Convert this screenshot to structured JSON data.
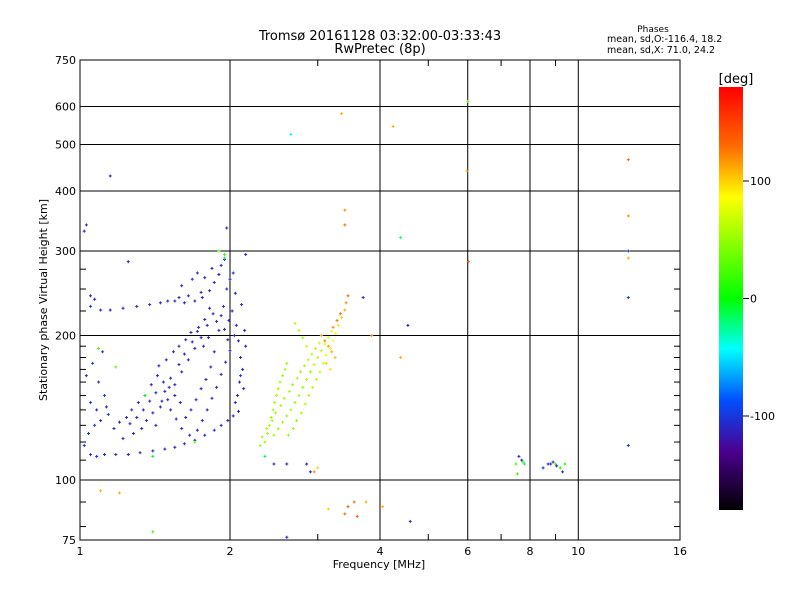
{
  "chart_data": {
    "type": "scatter",
    "title": "Tromsø 20161128 03:32:00-03:33:43",
    "subtitle": "RwPretec (8p)",
    "xlabel": "Frequency [MHz]",
    "ylabel": "Stationary phase Virtual Height [km]",
    "x_scale": "log",
    "y_scale": "log",
    "xlim": [
      1,
      16
    ],
    "ylim": [
      75,
      750
    ],
    "x_ticks": [
      1,
      2,
      4,
      6,
      8,
      10,
      16
    ],
    "x_minor_ticks": [
      3,
      5,
      7,
      9
    ],
    "y_ticks": [
      75,
      100,
      200,
      300,
      400,
      500,
      600,
      750
    ],
    "y_minor_ticks": [
      80,
      90,
      110,
      120,
      130,
      140,
      150,
      160,
      170,
      180,
      190,
      225,
      250,
      275
    ],
    "grid": true,
    "phases": {
      "heading": "Phases",
      "line1": "mean, sd,O:-116.4, 18.2",
      "line2": "mean, sd,X:  71.0, 24.2"
    },
    "colorbar": {
      "label": "[deg]",
      "ticks": [
        "100",
        "0",
        "-100"
      ],
      "tick_values": [
        100,
        0,
        -100
      ],
      "range": [
        -180,
        180
      ]
    },
    "points": [
      [
        1.03,
        340,
        -110
      ],
      [
        1.15,
        430,
        -110
      ],
      [
        1.25,
        285,
        -110
      ],
      [
        1.9,
        300,
        30
      ],
      [
        1.97,
        335,
        -110
      ],
      [
        2.15,
        295,
        -110
      ],
      [
        2.65,
        525,
        -40
      ],
      [
        3.35,
        580,
        110
      ],
      [
        4.25,
        545,
        110
      ],
      [
        4.4,
        320,
        -20
      ],
      [
        6.0,
        615,
        40
      ],
      [
        5.98,
        440,
        110
      ],
      [
        6.02,
        285,
        130
      ],
      [
        12.6,
        465,
        130
      ],
      [
        12.6,
        355,
        120
      ],
      [
        12.6,
        300,
        -100
      ],
      [
        12.6,
        290,
        110
      ],
      [
        12.6,
        240,
        -100
      ],
      [
        12.6,
        118,
        -100
      ],
      [
        3.4,
        365,
        120
      ],
      [
        3.4,
        340,
        130
      ],
      [
        3.7,
        240,
        -100
      ],
      [
        4.55,
        210,
        -120
      ],
      [
        3.85,
        200,
        120
      ],
      [
        4.4,
        180,
        110
      ],
      [
        1.05,
        242,
        -110
      ],
      [
        1.07,
        238,
        -110
      ],
      [
        1.05,
        230,
        -100
      ],
      [
        1.1,
        226,
        -110
      ],
      [
        1.15,
        226,
        -110
      ],
      [
        1.22,
        228,
        -110
      ],
      [
        1.3,
        230,
        -110
      ],
      [
        1.38,
        232,
        -110
      ],
      [
        1.45,
        234,
        -110
      ],
      [
        1.5,
        236,
        -110
      ],
      [
        1.55,
        236,
        -110
      ],
      [
        1.62,
        234,
        -110
      ],
      [
        1.7,
        236,
        -110
      ],
      [
        1.76,
        240,
        -110
      ],
      [
        1.82,
        248,
        -110
      ],
      [
        1.86,
        258,
        -110
      ],
      [
        1.9,
        268,
        -110
      ],
      [
        1.92,
        280,
        -110
      ],
      [
        1.95,
        288,
        -110
      ],
      [
        1.6,
        254,
        -110
      ],
      [
        1.68,
        262,
        -110
      ],
      [
        1.72,
        270,
        -110
      ],
      [
        1.78,
        264,
        -110
      ],
      [
        1.84,
        276,
        -110
      ],
      [
        1.75,
        246,
        -110
      ],
      [
        1.65,
        242,
        -110
      ],
      [
        1.58,
        240,
        -110
      ],
      [
        1.02,
        118,
        -100
      ],
      [
        1.05,
        113,
        -110
      ],
      [
        1.08,
        112,
        -110
      ],
      [
        1.12,
        113,
        -110
      ],
      [
        1.18,
        113,
        -110
      ],
      [
        1.25,
        113,
        -110
      ],
      [
        1.32,
        114,
        -110
      ],
      [
        1.4,
        115,
        -110
      ],
      [
        1.48,
        116,
        -110
      ],
      [
        1.55,
        117,
        -110
      ],
      [
        1.62,
        119,
        -110
      ],
      [
        1.7,
        121,
        -110
      ],
      [
        1.78,
        124,
        -110
      ],
      [
        1.86,
        127,
        -110
      ],
      [
        1.92,
        130,
        -110
      ],
      [
        1.98,
        133,
        -110
      ],
      [
        2.03,
        136,
        -110
      ],
      [
        2.08,
        139,
        -110
      ],
      [
        1.04,
        125,
        -100
      ],
      [
        1.07,
        130,
        -100
      ],
      [
        1.1,
        133,
        -110
      ],
      [
        1.14,
        137,
        -100
      ],
      [
        1.08,
        140,
        -110
      ],
      [
        1.05,
        145,
        -100
      ],
      [
        1.12,
        150,
        -100
      ],
      [
        1.09,
        160,
        -110
      ],
      [
        1.06,
        175,
        -100
      ],
      [
        1.11,
        185,
        -100
      ],
      [
        1.03,
        165,
        -110
      ],
      [
        1.13,
        142,
        -110
      ],
      [
        1.17,
        128,
        -110
      ],
      [
        1.22,
        122,
        -110
      ],
      [
        1.28,
        125,
        -110
      ],
      [
        1.33,
        128,
        -110
      ],
      [
        1.36,
        133,
        -110
      ],
      [
        1.42,
        130,
        -110
      ],
      [
        1.4,
        138,
        -110
      ],
      [
        1.45,
        142,
        -110
      ],
      [
        1.5,
        147,
        -110
      ],
      [
        1.48,
        153,
        -110
      ],
      [
        1.55,
        158,
        -110
      ],
      [
        1.52,
        163,
        -110
      ],
      [
        1.6,
        168,
        -110
      ],
      [
        1.58,
        174,
        -110
      ],
      [
        1.65,
        178,
        -110
      ],
      [
        1.62,
        183,
        -110
      ],
      [
        1.7,
        188,
        -110
      ],
      [
        1.68,
        194,
        -110
      ],
      [
        1.75,
        198,
        -110
      ],
      [
        1.72,
        204,
        -110
      ],
      [
        1.8,
        210,
        -110
      ],
      [
        1.78,
        216,
        -110
      ],
      [
        1.85,
        222,
        -110
      ],
      [
        1.82,
        228,
        -110
      ],
      [
        1.88,
        214,
        -110
      ],
      [
        1.92,
        220,
        -110
      ],
      [
        1.95,
        206,
        -110
      ],
      [
        1.98,
        196,
        -110
      ],
      [
        2.0,
        186,
        -110
      ],
      [
        1.96,
        176,
        -110
      ],
      [
        1.92,
        166,
        -110
      ],
      [
        1.88,
        156,
        -110
      ],
      [
        1.84,
        148,
        -110
      ],
      [
        1.8,
        140,
        -110
      ],
      [
        1.76,
        133,
        -110
      ],
      [
        1.72,
        127,
        -110
      ],
      [
        1.66,
        124,
        -110
      ],
      [
        1.6,
        128,
        -110
      ],
      [
        1.56,
        134,
        -110
      ],
      [
        1.52,
        140,
        -110
      ],
      [
        1.46,
        146,
        -110
      ],
      [
        1.42,
        152,
        -110
      ],
      [
        1.38,
        146,
        -110
      ],
      [
        1.34,
        140,
        -110
      ],
      [
        1.3,
        135,
        -110
      ],
      [
        1.26,
        131,
        -110
      ],
      [
        1.9,
        205,
        -110
      ],
      [
        1.94,
        230,
        -110
      ],
      [
        1.97,
        250,
        -110
      ],
      [
        2.0,
        262,
        -110
      ],
      [
        2.03,
        270,
        -110
      ],
      [
        2.05,
        245,
        -110
      ],
      [
        2.02,
        225,
        -110
      ],
      [
        2.06,
        210,
        -110
      ],
      [
        2.08,
        195,
        -110
      ],
      [
        2.1,
        180,
        -110
      ],
      [
        2.12,
        170,
        -110
      ],
      [
        2.09,
        160,
        -110
      ],
      [
        2.07,
        150,
        -110
      ],
      [
        2.05,
        145,
        -110
      ],
      [
        2.04,
        200,
        -110
      ],
      [
        1.99,
        215,
        -110
      ],
      [
        2.13,
        155,
        -110
      ],
      [
        2.1,
        165,
        -100
      ],
      [
        2.15,
        190,
        -120
      ],
      [
        2.14,
        205,
        -110
      ],
      [
        2.11,
        232,
        -110
      ],
      [
        1.86,
        185,
        -110
      ],
      [
        1.83,
        172,
        -110
      ],
      [
        1.79,
        162,
        -110
      ],
      [
        1.75,
        155,
        -110
      ],
      [
        1.71,
        147,
        -110
      ],
      [
        1.67,
        140,
        -110
      ],
      [
        1.63,
        135,
        -110
      ],
      [
        1.59,
        145,
        -110
      ],
      [
        1.55,
        150,
        -110
      ],
      [
        1.51,
        156,
        -110
      ],
      [
        1.47,
        160,
        -110
      ],
      [
        1.43,
        165,
        -110
      ],
      [
        1.39,
        158,
        -110
      ],
      [
        1.35,
        150,
        -110
      ],
      [
        1.31,
        145,
        -110
      ],
      [
        1.27,
        140,
        -110
      ],
      [
        1.24,
        135,
        -110
      ],
      [
        1.2,
        132,
        -110
      ],
      [
        1.44,
        173,
        -110
      ],
      [
        1.49,
        178,
        -110
      ],
      [
        1.54,
        185,
        -110
      ],
      [
        1.58,
        190,
        -110
      ],
      [
        1.63,
        196,
        -110
      ],
      [
        1.67,
        203,
        -110
      ],
      [
        1.73,
        208,
        -110
      ],
      [
        1.77,
        190,
        -110
      ],
      [
        1.81,
        198,
        -110
      ],
      [
        1.09,
        188,
        20
      ],
      [
        1.18,
        172,
        30
      ],
      [
        1.35,
        150,
        0
      ],
      [
        1.7,
        120,
        30
      ],
      [
        1.4,
        112,
        -10
      ],
      [
        1.95,
        290,
        -10
      ],
      [
        2.35,
        120,
        50
      ],
      [
        2.38,
        125,
        50
      ],
      [
        2.4,
        130,
        55
      ],
      [
        2.42,
        135,
        50
      ],
      [
        2.44,
        140,
        55
      ],
      [
        2.46,
        145,
        50
      ],
      [
        2.48,
        150,
        55
      ],
      [
        2.5,
        155,
        50
      ],
      [
        2.52,
        160,
        55
      ],
      [
        2.55,
        165,
        50
      ],
      [
        2.58,
        170,
        55
      ],
      [
        2.6,
        175,
        50
      ],
      [
        2.45,
        124,
        50
      ],
      [
        2.5,
        128,
        55
      ],
      [
        2.55,
        132,
        50
      ],
      [
        2.6,
        136,
        50
      ],
      [
        2.65,
        140,
        55
      ],
      [
        2.7,
        145,
        50
      ],
      [
        2.75,
        150,
        55
      ],
      [
        2.8,
        156,
        50
      ],
      [
        2.85,
        162,
        55
      ],
      [
        2.9,
        168,
        50
      ],
      [
        2.95,
        174,
        60
      ],
      [
        3.0,
        180,
        60
      ],
      [
        3.05,
        186,
        65
      ],
      [
        3.1,
        192,
        70
      ],
      [
        3.15,
        198,
        75
      ],
      [
        3.2,
        204,
        80
      ],
      [
        2.62,
        124,
        50
      ],
      [
        2.68,
        128,
        50
      ],
      [
        2.72,
        133,
        50
      ],
      [
        2.78,
        138,
        55
      ],
      [
        2.83,
        144,
        55
      ],
      [
        2.88,
        150,
        55
      ],
      [
        2.93,
        156,
        60
      ],
      [
        2.98,
        162,
        60
      ],
      [
        3.03,
        168,
        65
      ],
      [
        3.08,
        175,
        70
      ],
      [
        3.12,
        182,
        75
      ],
      [
        3.18,
        188,
        80
      ],
      [
        3.22,
        195,
        85
      ],
      [
        3.26,
        202,
        90
      ],
      [
        3.3,
        210,
        95
      ],
      [
        3.35,
        218,
        100
      ],
      [
        3.4,
        226,
        110
      ],
      [
        3.42,
        234,
        120
      ],
      [
        3.45,
        242,
        130
      ],
      [
        3.05,
        200,
        110
      ],
      [
        3.1,
        195,
        120
      ],
      [
        3.15,
        190,
        115
      ],
      [
        3.2,
        185,
        110
      ],
      [
        3.25,
        180,
        105
      ],
      [
        3.12,
        175,
        100
      ],
      [
        3.18,
        170,
        95
      ],
      [
        3.22,
        208,
        120
      ],
      [
        3.28,
        215,
        125
      ],
      [
        3.33,
        222,
        130
      ],
      [
        2.75,
        205,
        60
      ],
      [
        2.8,
        198,
        55
      ],
      [
        2.7,
        212,
        60
      ],
      [
        2.85,
        190,
        70
      ],
      [
        2.3,
        118,
        50
      ],
      [
        2.32,
        123,
        50
      ],
      [
        2.37,
        128,
        55
      ],
      [
        2.43,
        133,
        55
      ],
      [
        2.47,
        138,
        50
      ],
      [
        2.53,
        143,
        55
      ],
      [
        2.57,
        148,
        50
      ],
      [
        2.63,
        153,
        55
      ],
      [
        2.67,
        158,
        50
      ],
      [
        2.73,
        163,
        55
      ],
      [
        2.77,
        168,
        50
      ],
      [
        2.82,
        173,
        55
      ],
      [
        2.87,
        178,
        60
      ],
      [
        2.92,
        183,
        60
      ],
      [
        2.97,
        188,
        65
      ],
      [
        3.02,
        193,
        70
      ],
      [
        2.35,
        112,
        -10
      ],
      [
        2.45,
        108,
        -110
      ],
      [
        2.6,
        108,
        -110
      ],
      [
        2.85,
        108,
        -110
      ],
      [
        2.9,
        104,
        -110
      ],
      [
        2.95,
        104,
        120
      ],
      [
        3.0,
        106,
        100
      ],
      [
        3.4,
        85,
        130
      ],
      [
        3.45,
        88,
        140
      ],
      [
        3.55,
        90,
        130
      ],
      [
        3.6,
        84,
        140
      ],
      [
        3.75,
        90,
        110
      ],
      [
        4.05,
        88,
        110
      ],
      [
        4.6,
        82,
        -110
      ],
      [
        3.15,
        87,
        100
      ],
      [
        2.6,
        76,
        -110
      ],
      [
        1.1,
        95,
        110
      ],
      [
        1.2,
        94,
        110
      ],
      [
        1.4,
        78,
        20
      ],
      [
        7.5,
        108,
        20
      ],
      [
        7.6,
        112,
        -110
      ],
      [
        7.7,
        110,
        -110
      ],
      [
        7.55,
        103,
        20
      ],
      [
        7.75,
        109,
        20
      ],
      [
        7.8,
        108,
        -20
      ],
      [
        8.7,
        108,
        -110
      ],
      [
        8.8,
        108,
        -110
      ],
      [
        8.9,
        109,
        -110
      ],
      [
        9.0,
        108,
        20
      ],
      [
        9.05,
        107,
        -110
      ],
      [
        9.2,
        106,
        0
      ],
      [
        9.3,
        104,
        -110
      ],
      [
        9.4,
        108,
        10
      ],
      [
        8.5,
        106,
        -100
      ],
      [
        1.02,
        330,
        -110
      ],
      [
        1.95,
        295,
        20
      ]
    ]
  }
}
